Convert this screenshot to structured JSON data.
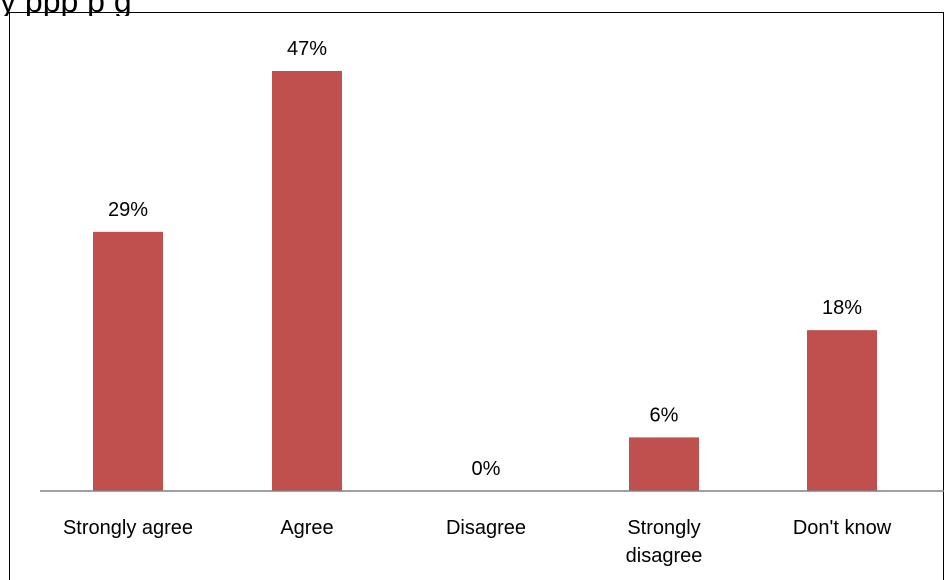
{
  "chart_data": {
    "type": "bar",
    "title_fragment": "y                  ppp p                                g",
    "categories": [
      "Strongly agree",
      "Agree",
      "Disagree",
      "Strongly disagree",
      "Don't know"
    ],
    "category_lines": [
      [
        "Strongly agree"
      ],
      [
        "Agree"
      ],
      [
        "Disagree"
      ],
      [
        "Strongly",
        "disagree"
      ],
      [
        "Don't know"
      ]
    ],
    "values": [
      29,
      47,
      0,
      6,
      18
    ],
    "data_labels": [
      "29%",
      "47%",
      "0%",
      "6%",
      "18%"
    ],
    "unit": "%",
    "ylim": [
      0,
      50
    ],
    "grid": false,
    "legend": "none",
    "bar_color": "#c0504d",
    "axis_color": "#808080"
  }
}
